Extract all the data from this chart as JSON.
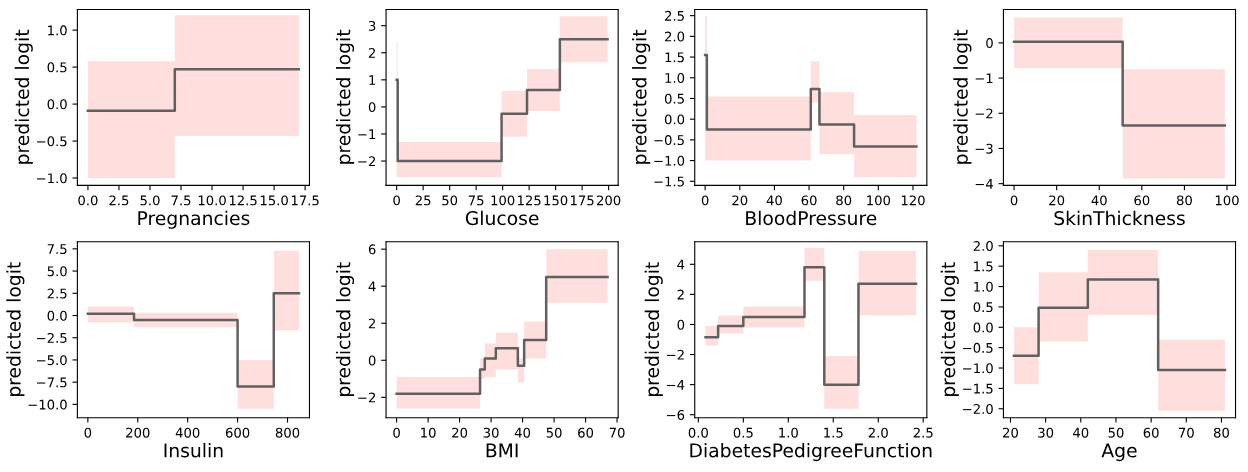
{
  "chart_data": [
    {
      "type": "step",
      "xlabel": "Pregnancies",
      "ylabel": "predicted logit",
      "xlim": [
        -0.85,
        17.85
      ],
      "ylim": [
        -1.1,
        1.28
      ],
      "xticks": [
        {
          "value": 0,
          "label": "0.0"
        },
        {
          "value": 2.5,
          "label": "2.5"
        },
        {
          "value": 5,
          "label": "5.0"
        },
        {
          "value": 7.5,
          "label": "7.5"
        },
        {
          "value": 10,
          "label": "10.0"
        },
        {
          "value": 12.5,
          "label": "12.5"
        },
        {
          "value": 15,
          "label": "15.0"
        },
        {
          "value": 17.5,
          "label": "17.5"
        }
      ],
      "yticks": [
        {
          "value": -1,
          "label": "−1.0"
        },
        {
          "value": -0.5,
          "label": "−0.5"
        },
        {
          "value": 0,
          "label": "0.0"
        },
        {
          "value": 0.5,
          "label": "0.5"
        },
        {
          "value": 1,
          "label": "1.0"
        }
      ],
      "series": [
        {
          "color": "#606060",
          "x": [
            0,
            7,
            17
          ],
          "values": [
            -0.09,
            0.47,
            0.47
          ],
          "lower": [
            -1.0,
            -0.43,
            -0.43
          ],
          "upper": [
            0.58,
            1.2,
            1.2
          ]
        }
      ]
    },
    {
      "type": "step",
      "xlabel": "Glucose",
      "ylabel": "predicted logit",
      "xlim": [
        -10,
        209
      ],
      "ylim": [
        -2.9,
        3.6
      ],
      "xticks": [
        0,
        25,
        50,
        75,
        100,
        125,
        150,
        175,
        200
      ],
      "yticks": [
        {
          "value": -2,
          "label": "−2"
        },
        {
          "value": -1,
          "label": "−1"
        },
        0,
        1,
        2,
        3
      ],
      "series": [
        {
          "color": "#606060",
          "x": [
            0,
            1,
            99,
            123,
            154,
            199
          ],
          "values": [
            1.0,
            -2.0,
            -0.25,
            0.62,
            2.5,
            2.5
          ],
          "lower": [
            -2.6,
            -2.6,
            -1.1,
            -0.15,
            1.65,
            1.65
          ],
          "upper": [
            2.4,
            -1.3,
            0.6,
            1.4,
            3.35,
            3.35
          ]
        }
      ]
    },
    {
      "type": "step",
      "xlabel": "BloodPressure",
      "ylabel": "predicted logit",
      "xlim": [
        -6,
        128
      ],
      "ylim": [
        -1.6,
        2.65
      ],
      "xticks": [
        0,
        20,
        40,
        60,
        80,
        100,
        120
      ],
      "yticks": [
        {
          "value": -1.5,
          "label": "−1.5"
        },
        {
          "value": -1,
          "label": "−1.0"
        },
        {
          "value": -0.5,
          "label": "−0.5"
        },
        {
          "value": 0,
          "label": "0.0"
        },
        {
          "value": 0.5,
          "label": "0.5"
        },
        {
          "value": 1,
          "label": "1.0"
        },
        {
          "value": 1.5,
          "label": "1.5"
        },
        {
          "value": 2,
          "label": "2.0"
        },
        {
          "value": 2.5,
          "label": "2.5"
        }
      ],
      "series": [
        {
          "color": "#606060",
          "x": [
            0,
            1,
            61,
            66,
            86,
            122
          ],
          "values": [
            1.55,
            -0.25,
            0.73,
            -0.13,
            -0.66,
            -0.66
          ],
          "lower": [
            -1.0,
            -1.0,
            0.4,
            -0.85,
            -1.4,
            -1.4
          ],
          "upper": [
            2.5,
            0.55,
            1.4,
            0.65,
            0.1,
            0.1
          ]
        }
      ]
    },
    {
      "type": "step",
      "xlabel": "SkinThickness",
      "ylabel": "predicted logit",
      "xlim": [
        -5,
        104
      ],
      "ylim": [
        -4.05,
        0.95
      ],
      "xticks": [
        0,
        20,
        40,
        60,
        80,
        100
      ],
      "yticks": [
        {
          "value": -4,
          "label": "−4"
        },
        {
          "value": -3,
          "label": "−3"
        },
        {
          "value": -2,
          "label": "−2"
        },
        {
          "value": -1,
          "label": "−1"
        },
        0
      ],
      "series": [
        {
          "color": "#606060",
          "x": [
            0,
            51,
            99
          ],
          "values": [
            0.03,
            -2.35,
            -2.35
          ],
          "lower": [
            -0.72,
            -3.85,
            -3.85
          ],
          "upper": [
            0.72,
            -0.75,
            -0.75
          ]
        }
      ]
    },
    {
      "type": "step",
      "xlabel": "Insulin",
      "ylabel": "predicted logit",
      "xlim": [
        -42,
        888
      ],
      "ylim": [
        -11.5,
        8.3
      ],
      "xticks": [
        0,
        200,
        400,
        600,
        800
      ],
      "yticks": [
        {
          "value": -10,
          "label": "−10.0"
        },
        {
          "value": -7.5,
          "label": "−7.5"
        },
        {
          "value": -5,
          "label": "−5.0"
        },
        {
          "value": -2.5,
          "label": "−2.5"
        },
        {
          "value": 0,
          "label": "0.0"
        },
        {
          "value": 2.5,
          "label": "2.5"
        },
        {
          "value": 5,
          "label": "5.0"
        },
        {
          "value": 7.5,
          "label": "7.5"
        }
      ],
      "series": [
        {
          "color": "#606060",
          "x": [
            0,
            185,
            600,
            745,
            846
          ],
          "values": [
            0.2,
            -0.5,
            -8.0,
            2.5,
            2.5
          ],
          "lower": [
            -0.8,
            -1.3,
            -10.5,
            -1.7,
            -1.7
          ],
          "upper": [
            1.0,
            0.3,
            -5.0,
            7.3,
            7.3
          ]
        }
      ]
    },
    {
      "type": "step",
      "xlabel": "BMI",
      "ylabel": "predicted logit",
      "xlim": [
        -3.35,
        70.35
      ],
      "ylim": [
        -3.1,
        6.4
      ],
      "xticks": [
        0,
        10,
        20,
        30,
        40,
        50,
        60,
        70
      ],
      "yticks": [
        {
          "value": -2,
          "label": "−2"
        },
        0,
        2,
        4,
        6
      ],
      "series": [
        {
          "color": "#606060",
          "x": [
            0,
            26.5,
            28,
            31.5,
            38.5,
            40.5,
            47.5,
            67
          ],
          "values": [
            -1.8,
            -0.5,
            0.1,
            0.65,
            -0.3,
            1.1,
            4.5,
            4.5
          ],
          "lower": [
            -2.6,
            -1.0,
            -0.9,
            -0.5,
            -1.2,
            0.1,
            3.1,
            3.1
          ],
          "upper": [
            -0.9,
            0.1,
            0.9,
            1.5,
            0.1,
            2.1,
            6.0,
            6.0
          ]
        }
      ]
    },
    {
      "type": "step",
      "xlabel": "DiabetesPedigreeFunction",
      "ylabel": "predicted logit",
      "xlim": [
        -0.04,
        2.54
      ],
      "ylim": [
        -6.2,
        5.5
      ],
      "xticks": [
        {
          "value": 0,
          "label": "0.0"
        },
        {
          "value": 0.5,
          "label": "0.5"
        },
        {
          "value": 1,
          "label": "1.0"
        },
        {
          "value": 1.5,
          "label": "1.5"
        },
        {
          "value": 2,
          "label": "2.0"
        },
        {
          "value": 2.5,
          "label": "2.5"
        }
      ],
      "yticks": [
        {
          "value": -6,
          "label": "−6"
        },
        {
          "value": -4,
          "label": "−4"
        },
        {
          "value": -2,
          "label": "−2"
        },
        0,
        2,
        4
      ],
      "series": [
        {
          "color": "#606060",
          "x": [
            0.08,
            0.22,
            0.5,
            1.18,
            1.4,
            1.78,
            2.42
          ],
          "values": [
            -0.85,
            -0.1,
            0.5,
            3.8,
            -4.0,
            2.7,
            2.7
          ],
          "lower": [
            -1.4,
            -0.6,
            -0.2,
            2.9,
            -5.6,
            0.6,
            0.6
          ],
          "upper": [
            -0.1,
            0.6,
            1.2,
            5.1,
            -2.1,
            4.9,
            4.9
          ]
        }
      ]
    },
    {
      "type": "step",
      "xlabel": "Age",
      "ylabel": "predicted logit",
      "xlim": [
        18,
        84
      ],
      "ylim": [
        -2.22,
        2.1
      ],
      "xticks": [
        20,
        30,
        40,
        50,
        60,
        70,
        80
      ],
      "yticks": [
        {
          "value": -2,
          "label": "−2.0"
        },
        {
          "value": -1.5,
          "label": "−1.5"
        },
        {
          "value": -1,
          "label": "−1.0"
        },
        {
          "value": -0.5,
          "label": "−0.5"
        },
        {
          "value": 0,
          "label": "0.0"
        },
        {
          "value": 0.5,
          "label": "0.5"
        },
        {
          "value": 1,
          "label": "1.0"
        },
        {
          "value": 1.5,
          "label": "1.5"
        },
        {
          "value": 2,
          "label": "2.0"
        }
      ],
      "series": [
        {
          "color": "#606060",
          "x": [
            21,
            28,
            42,
            62,
            81
          ],
          "values": [
            -0.7,
            0.48,
            1.17,
            -1.05,
            -1.05
          ],
          "lower": [
            -1.4,
            -0.35,
            0.3,
            -2.05,
            -2.05
          ],
          "upper": [
            0.0,
            1.35,
            1.9,
            -0.3,
            -0.3
          ]
        }
      ]
    }
  ]
}
